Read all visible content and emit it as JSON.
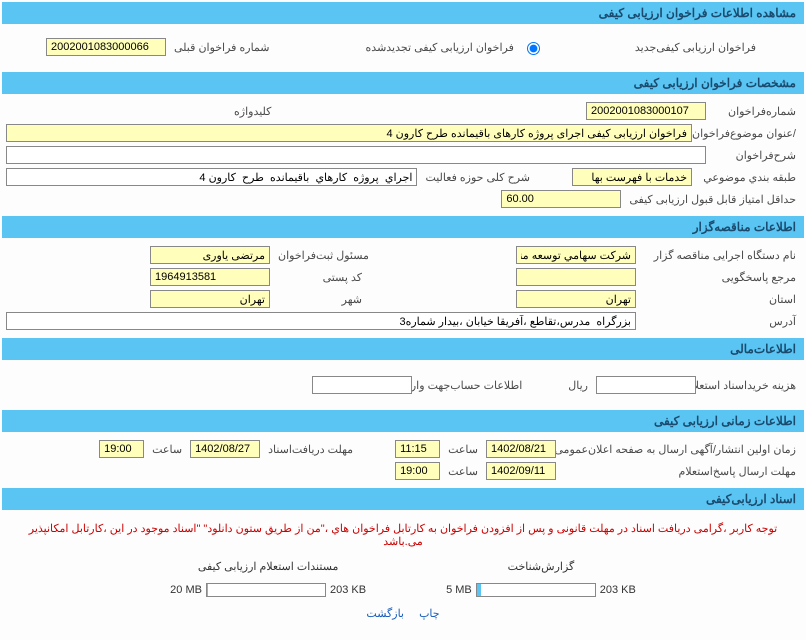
{
  "section1": {
    "title": "مشاهده اطلاعات فراخوان ارزیابی کیفی",
    "opt_new": "فراخوان  ارزیابی  کیفی‌جدید",
    "opt_renew": "فراخوان  ارزیابی  کیفی تجدیدشده",
    "prev_no_label": "شماره فراخوان قبلی",
    "prev_no": "2002001083000066"
  },
  "section2": {
    "title": "مشخصات فراخوان ارزیابی کیفی",
    "no_label": "شماره‌فراخوان",
    "no": "2002001083000107",
    "keyword_label": "کلیدواژه",
    "keyword": "",
    "subject_label": "/عنوان  موضوع‌فراخوان",
    "subject": "فراخوان ارزیابی کیفی اجرای پروژه کارهای باقیمانده طرح کارون 4",
    "desc_label": "شرح‌فراخوان",
    "desc": "",
    "class_label": "طبقه  بندي موضوعي",
    "class": "خدمات با فهرست بها",
    "activity_label": "شرح  کلی  حوزه فعاليت",
    "activity": "اجراي  پروژه  کارهاي  باقيمانده  طرح  کارون 4",
    "min_score_label": "حداقل  امتياز قابل قبول  ارزيابی کيفی",
    "min_score": "60.00"
  },
  "section3": {
    "title": "اطلاعات مناقصه‌گزار",
    "org_label": "نام دستگاه اجرايی  مناقصه گزار",
    "org": "شرکت سهامي توسعه منا",
    "reg_resp_label": "مسئول ثبت‌فراخوان",
    "reg_resp": "مرتضی یاوری",
    "ref_label": "مرجع پاسخگويی",
    "ref": "",
    "postal_label": "کد پستی",
    "postal": "1964913581",
    "province_label": "استان",
    "province": "تهران",
    "city_label": "شهر",
    "city": "تهران",
    "address_label": "آدرس",
    "address": "بزرگراه  مدرس،تقاطع ،آفريقا خيابان ،بيدار شماره3"
  },
  "section4": {
    "title": "اطلاعات‌مالی",
    "doc_cost_label": "هزينه خريداسناد استعلام  ارزيابی کيفی",
    "currency": "ريال",
    "doc_cost": "",
    "account_label": "اطلاعات حساب‌جهت واريز  هزينه خريداسناد",
    "account": ""
  },
  "section5": {
    "title": "اطلاعات زمانی ارزیابی کیفی",
    "pub_label": "زمان اولین انتشار/آگهی ارسال به  صفحه اعلان‌عمومی",
    "pub_date": "1402/08/21",
    "pub_time_label": "ساعت",
    "pub_time": "11:15",
    "deadline_receive_label": "مهلت دریافت‌اسناد",
    "deadline_receive_date": "1402/08/27",
    "deadline_receive_time": "19:00",
    "deadline_reply_label": "مهلت ارسال پاسخ‌استعلام",
    "deadline_reply_date": "1402/09/11",
    "deadline_reply_time": "19:00"
  },
  "section6": {
    "title": "اسناد ارزیابی‌کیفی",
    "warning": "توجه کاربر ،گرامی دريافت اسناد در مهلت قانونی و پس از افزودن فراخوان به کارتابل فراخوان‌ هاي ،\"من از طريق ستون دانلود\" \"اسناد موجود در اين ،کارتابل امکانپذير می.باشد",
    "col1_label": "گزارش‌شناخت",
    "col1_current": "203 KB",
    "col1_max": "5 MB",
    "col1_pct": 4,
    "col2_label": "مستندات استعلام  ارزیابی کیفی",
    "col2_current": "203 KB",
    "col2_max": "20 MB",
    "col2_pct": 1
  },
  "footer": {
    "print": "چاپ",
    "back": "بازگشت"
  }
}
